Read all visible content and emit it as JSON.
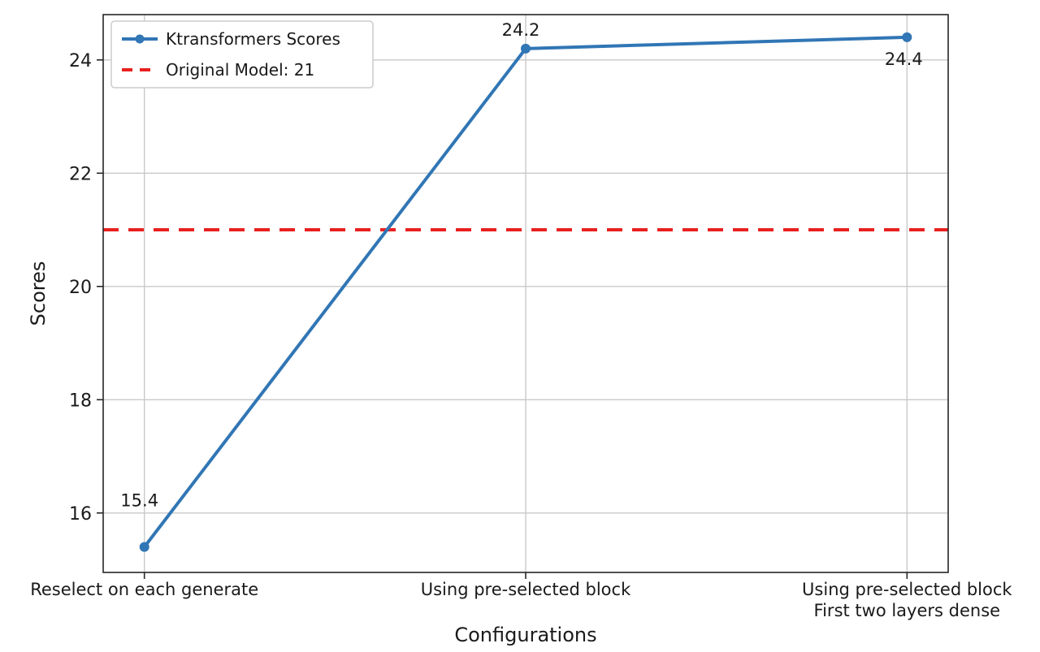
{
  "chart_data": {
    "type": "line",
    "categories": [
      "Reselect on each generate",
      "Using pre-selected block",
      "Using pre-selected block\nFirst two layers dense"
    ],
    "series": [
      {
        "name": "Ktransformers Scores",
        "values": [
          15.4,
          24.2,
          24.4
        ],
        "labels": [
          "15.4",
          "24.2",
          "24.4"
        ],
        "color": "#3176b5",
        "marker": "circle"
      }
    ],
    "reference_line": {
      "label": "Original Model: 21",
      "value": 21,
      "color": "#e82020",
      "style": "dashed"
    },
    "xlabel": "Configurations",
    "ylabel": "Scores",
    "yticks": [
      16,
      18,
      20,
      22,
      24
    ],
    "ylim": [
      14.95,
      24.8
    ],
    "grid": true,
    "grid_color": "#c9c9c9",
    "spine_color": "#262626",
    "legend_position": "upper left",
    "legend_entries": [
      "Ktransformers Scores",
      "Original Model: 21"
    ]
  }
}
